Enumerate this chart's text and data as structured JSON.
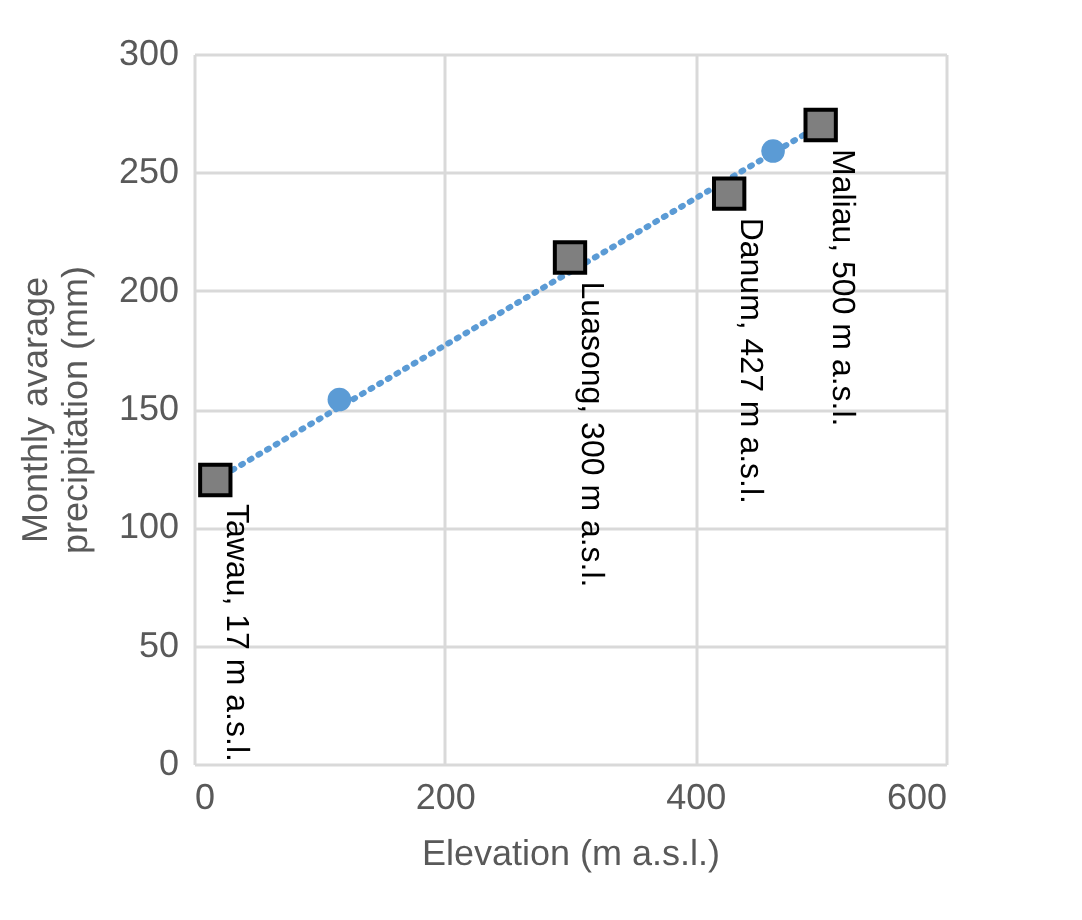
{
  "chart_data": {
    "type": "scatter",
    "xlabel": "Elevation (m a.s.l.)",
    "ylabel": "Monthly avarage precipitation (mm)",
    "xlim": [
      0,
      600
    ],
    "xticks": [
      0,
      200,
      400,
      600
    ],
    "ylim": [
      0,
      300
    ],
    "yticks": [
      0,
      50,
      100,
      150,
      200,
      250,
      300
    ],
    "grid": true,
    "series": [
      {
        "type": "line",
        "line_style": "dotted",
        "marker": "none",
        "color": "#5b9bd5",
        "x": [
          17,
          500
        ],
        "values": [
          120,
          270
        ]
      },
      {
        "type": "scatter",
        "marker": "circle",
        "color": "#5b9bd5",
        "x": [
          116,
          462
        ],
        "values": [
          154,
          259
        ]
      },
      {
        "type": "scatter",
        "marker": "square",
        "color": "#7f7f7f",
        "x": [
          17,
          300,
          427,
          500
        ],
        "values": [
          120,
          214,
          241,
          270
        ]
      }
    ],
    "annotations": [
      {
        "text": "Tawau, 17 m a.s.l.",
        "x": 17,
        "y": 120
      },
      {
        "text": "Luasong, 300 m a.s.l.",
        "x": 300,
        "y": 214
      },
      {
        "text": "Danum, 427 m a.s.l.",
        "x": 427,
        "y": 241
      },
      {
        "text": "Maliau, 500 m a.s.l.",
        "x": 500,
        "y": 270
      }
    ]
  }
}
